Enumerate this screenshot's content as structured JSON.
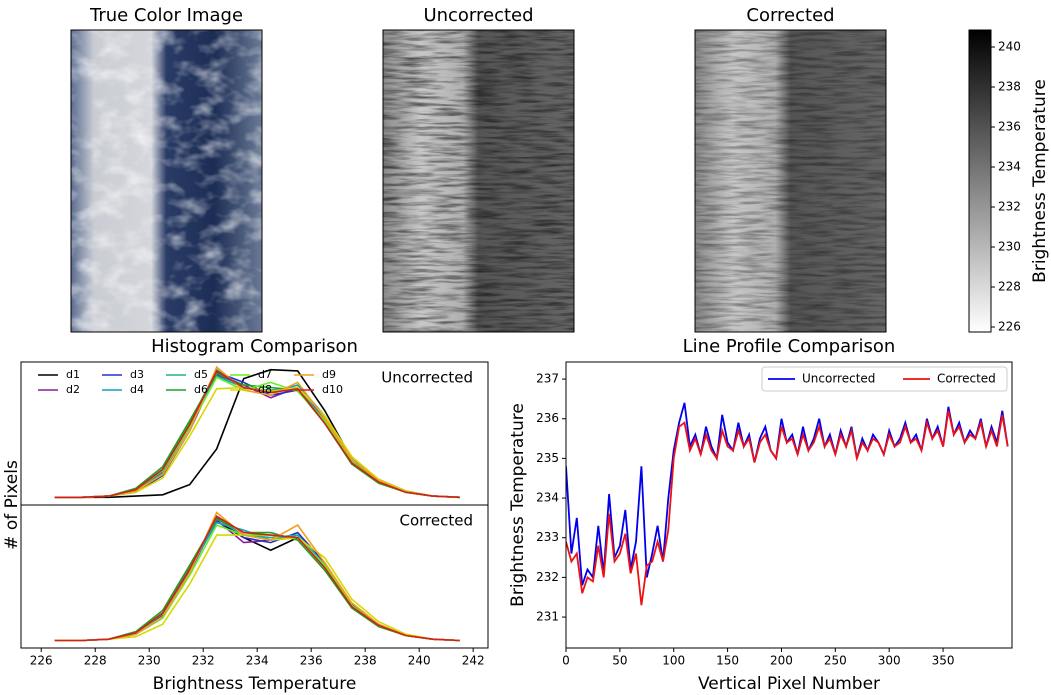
{
  "chart_data": [
    {
      "type": "image",
      "title": "True Color Image"
    },
    {
      "type": "image",
      "title": "Uncorrected"
    },
    {
      "type": "image",
      "title": "Corrected"
    },
    {
      "type": "colorbar",
      "label": "Brightness Temperature",
      "ylim": [
        225.75,
        240.85
      ],
      "yticks": [
        226,
        228,
        230,
        232,
        234,
        236,
        238,
        240
      ]
    },
    {
      "type": "hist_panels",
      "title": "Histogram Comparison",
      "xlabel": "Brightness Temperature",
      "ylabel": "# of Pixels",
      "x": [
        226.5,
        227.5,
        228.5,
        229.5,
        230.5,
        231.5,
        232.5,
        233.5,
        234.5,
        235.5,
        236.5,
        237.5,
        238.5,
        239.5,
        240.5,
        241.5
      ],
      "xlim": [
        225.25,
        242.55
      ],
      "xticks": [
        226,
        228,
        230,
        232,
        234,
        236,
        238,
        240,
        242
      ],
      "series": [
        {
          "name": "d1",
          "color": "#000000"
        },
        {
          "name": "d2",
          "color": "#8b1a9e"
        },
        {
          "name": "d3",
          "color": "#2233cc"
        },
        {
          "name": "d4",
          "color": "#10a0c0"
        },
        {
          "name": "d5",
          "color": "#20b090"
        },
        {
          "name": "d6",
          "color": "#22a020"
        },
        {
          "name": "d7",
          "color": "#66ee22"
        },
        {
          "name": "d8",
          "color": "#d8d800"
        },
        {
          "name": "d9",
          "color": "#f0a020"
        },
        {
          "name": "d10",
          "color": "#d02020"
        }
      ],
      "panels": [
        {
          "label": "Uncorrected",
          "ylim": [
            -6,
            106
          ],
          "values": [
            [
              0,
              0,
              0,
              1,
              2,
              10,
              38,
              93,
              100,
              99,
              68,
              30,
              14,
              5,
              1,
              0
            ],
            [
              0,
              0,
              1,
              5,
              20,
              55,
              96,
              88,
              78,
              86,
              62,
              30,
              12,
              4,
              1,
              0
            ],
            [
              0,
              0,
              1,
              4,
              17,
              52,
              98,
              90,
              80,
              84,
              60,
              28,
              12,
              4,
              1,
              0
            ],
            [
              0,
              0,
              1,
              5,
              19,
              56,
              95,
              86,
              82,
              88,
              64,
              30,
              13,
              4,
              1,
              0
            ],
            [
              0,
              0,
              1,
              6,
              22,
              58,
              100,
              85,
              84,
              86,
              60,
              27,
              12,
              4,
              1,
              0
            ],
            [
              0,
              0,
              1,
              7,
              24,
              60,
              97,
              88,
              86,
              84,
              58,
              26,
              11,
              4,
              1,
              0
            ],
            [
              0,
              0,
              1,
              6,
              21,
              55,
              94,
              84,
              90,
              83,
              60,
              28,
              12,
              4,
              1,
              0
            ],
            [
              0,
              0,
              1,
              4,
              15,
              48,
              85,
              86,
              83,
              86,
              64,
              32,
              14,
              5,
              1,
              0
            ],
            [
              0,
              0,
              1,
              5,
              18,
              52,
              102,
              84,
              80,
              90,
              62,
              30,
              13,
              4,
              1,
              0
            ],
            [
              0,
              0,
              1,
              6,
              22,
              57,
              99,
              86,
              82,
              85,
              58,
              27,
              12,
              4,
              1,
              0
            ]
          ]
        },
        {
          "label": "Corrected",
          "ylim": [
            -6,
            108
          ],
          "values": [
            [
              0,
              0,
              1,
              5,
              20,
              56,
              95,
              82,
              72,
              82,
              60,
              28,
              12,
              4,
              1,
              0
            ],
            [
              0,
              0,
              1,
              5,
              19,
              55,
              96,
              78,
              80,
              82,
              60,
              28,
              12,
              4,
              1,
              0
            ],
            [
              0,
              0,
              1,
              5,
              18,
              54,
              98,
              82,
              78,
              86,
              62,
              29,
              12,
              4,
              1,
              0
            ],
            [
              0,
              0,
              1,
              6,
              21,
              57,
              94,
              88,
              80,
              84,
              60,
              28,
              12,
              4,
              1,
              0
            ],
            [
              0,
              0,
              1,
              6,
              22,
              58,
              97,
              84,
              82,
              84,
              58,
              27,
              12,
              4,
              1,
              0
            ],
            [
              0,
              0,
              1,
              7,
              24,
              60,
              97,
              86,
              86,
              80,
              56,
              26,
              11,
              4,
              1,
              0
            ],
            [
              0,
              0,
              1,
              5,
              18,
              52,
              92,
              84,
              84,
              82,
              60,
              28,
              12,
              4,
              1,
              0
            ],
            [
              0,
              0,
              1,
              3,
              13,
              45,
              84,
              84,
              80,
              82,
              66,
              33,
              15,
              5,
              1,
              0
            ],
            [
              0,
              0,
              1,
              5,
              19,
              54,
              102,
              84,
              80,
              92,
              62,
              30,
              13,
              4,
              1,
              0
            ],
            [
              0,
              0,
              1,
              6,
              22,
              57,
              99,
              86,
              84,
              82,
              58,
              27,
              12,
              4,
              1,
              0
            ]
          ]
        }
      ]
    },
    {
      "type": "line",
      "title": "Line Profile Comparison",
      "xlabel": "Vertical Pixel Number",
      "ylabel": "Brightness Temperature",
      "x": [
        0,
        5,
        10,
        15,
        20,
        25,
        30,
        35,
        40,
        45,
        50,
        55,
        60,
        65,
        70,
        75,
        80,
        85,
        90,
        95,
        100,
        105,
        110,
        115,
        120,
        125,
        130,
        135,
        140,
        145,
        150,
        155,
        160,
        165,
        170,
        175,
        180,
        185,
        190,
        195,
        200,
        205,
        210,
        215,
        220,
        225,
        230,
        235,
        240,
        245,
        250,
        255,
        260,
        265,
        270,
        275,
        280,
        285,
        290,
        295,
        300,
        305,
        310,
        315,
        320,
        325,
        330,
        335,
        340,
        345,
        350,
        355,
        360,
        365,
        370,
        375,
        380,
        385,
        390,
        395,
        400,
        405,
        410
      ],
      "xlim": [
        0,
        414
      ],
      "xticks": [
        0,
        50,
        100,
        150,
        200,
        250,
        300,
        350
      ],
      "ylim": [
        230.22,
        237.43
      ],
      "yticks": [
        231,
        232,
        233,
        234,
        235,
        236,
        237
      ],
      "legend": "upper right",
      "series": [
        {
          "name": "Uncorrected",
          "color": "#0000ee",
          "values": [
            234.8,
            232.6,
            233.5,
            231.8,
            232.2,
            232.0,
            233.3,
            232.1,
            234.1,
            232.5,
            232.8,
            233.7,
            232.2,
            232.9,
            234.8,
            232.0,
            232.6,
            233.3,
            232.4,
            234.0,
            235.2,
            235.9,
            236.4,
            235.3,
            235.6,
            235.1,
            235.8,
            235.3,
            235.0,
            236.1,
            235.4,
            235.2,
            235.9,
            235.3,
            235.6,
            234.9,
            235.5,
            235.8,
            235.2,
            235.0,
            236.0,
            235.4,
            235.6,
            235.1,
            235.8,
            235.2,
            235.5,
            236.0,
            235.3,
            235.6,
            235.1,
            235.7,
            235.3,
            235.8,
            235.0,
            235.5,
            235.2,
            235.6,
            235.4,
            235.1,
            235.7,
            235.3,
            235.5,
            235.9,
            235.4,
            235.6,
            235.2,
            236.0,
            235.5,
            235.8,
            235.3,
            236.3,
            235.6,
            235.9,
            235.4,
            235.7,
            235.5,
            236.0,
            235.3,
            235.8,
            235.4,
            236.2,
            235.3
          ]
        },
        {
          "name": "Corrected",
          "color": "#ee1111",
          "values": [
            232.9,
            232.4,
            232.6,
            231.6,
            232.0,
            231.9,
            232.8,
            232.0,
            233.6,
            232.4,
            232.6,
            233.1,
            232.1,
            232.6,
            231.3,
            232.3,
            232.4,
            232.9,
            232.4,
            233.2,
            235.0,
            235.8,
            235.9,
            235.2,
            235.5,
            235.1,
            235.6,
            235.2,
            235.0,
            235.7,
            235.3,
            235.2,
            235.7,
            235.3,
            235.5,
            234.9,
            235.4,
            235.6,
            235.2,
            235.0,
            235.8,
            235.4,
            235.5,
            235.1,
            235.6,
            235.2,
            235.4,
            235.8,
            235.3,
            235.5,
            235.1,
            235.6,
            235.3,
            235.7,
            235.0,
            235.4,
            235.2,
            235.5,
            235.4,
            235.1,
            235.6,
            235.3,
            235.4,
            235.8,
            235.4,
            235.5,
            235.2,
            235.9,
            235.5,
            235.7,
            235.3,
            236.2,
            235.6,
            235.8,
            235.4,
            235.6,
            235.5,
            235.9,
            235.3,
            235.7,
            235.3,
            236.1,
            235.3
          ]
        }
      ]
    }
  ]
}
